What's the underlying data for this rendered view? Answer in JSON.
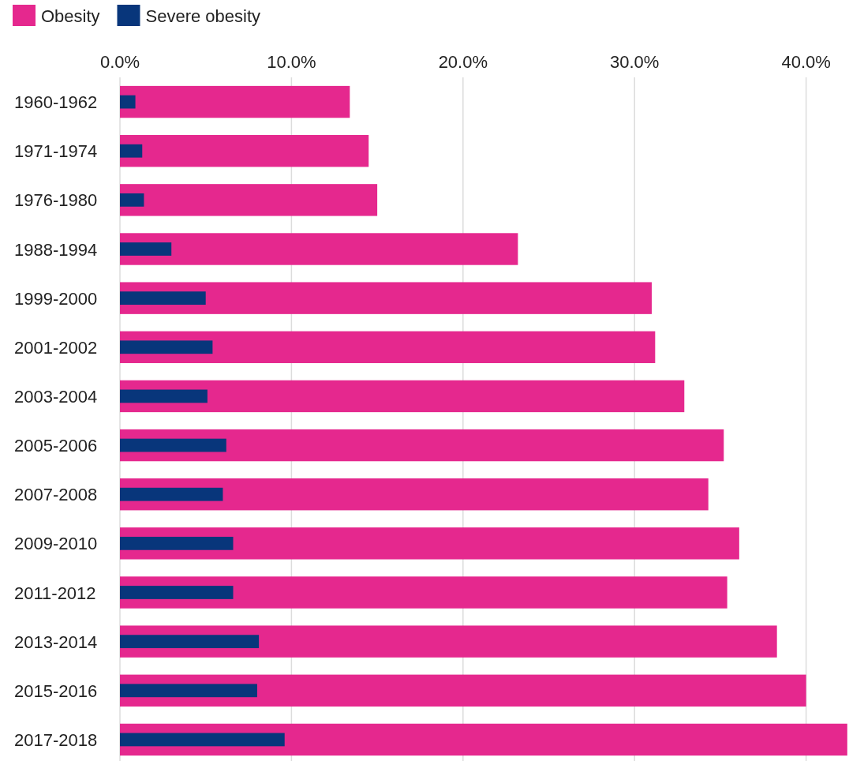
{
  "chart_data": {
    "type": "bar",
    "orientation": "horizontal",
    "categories": [
      "1960-1962",
      "1971-1974",
      "1976-1980",
      "1988-1994",
      "1999-2000",
      "2001-2002",
      "2003-2004",
      "2005-2006",
      "2007-2008",
      "2009-2010",
      "2011-2012",
      "2013-2014",
      "2015-2016",
      "2017-2018"
    ],
    "series": [
      {
        "name": "Obesity",
        "color": "#e5288e",
        "values": [
          13.4,
          14.5,
          15.0,
          23.2,
          31.0,
          31.2,
          32.9,
          35.2,
          34.3,
          36.1,
          35.4,
          38.3,
          40.0,
          42.4
        ]
      },
      {
        "name": "Severe obesity",
        "color": "#08367b",
        "values": [
          0.9,
          1.3,
          1.4,
          3.0,
          5.0,
          5.4,
          5.1,
          6.2,
          6.0,
          6.6,
          6.6,
          8.1,
          8.0,
          9.6
        ]
      }
    ],
    "xlim": [
      0,
      42.5
    ],
    "xticks": [
      {
        "value": 0,
        "label": "0.0%"
      },
      {
        "value": 10,
        "label": "10.0%"
      },
      {
        "value": 20,
        "label": "20.0%"
      },
      {
        "value": 30,
        "label": "30.0%"
      },
      {
        "value": 40,
        "label": "40.0%"
      }
    ],
    "grid": "x",
    "legend": "top left"
  }
}
